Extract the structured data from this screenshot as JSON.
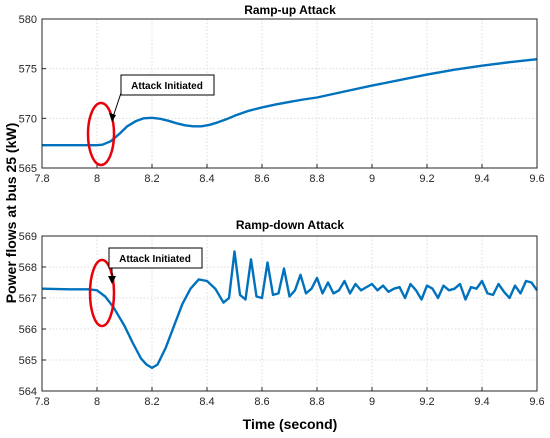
{
  "colors": {
    "series": "#0072BD",
    "ellipse": "#E8000B",
    "frame": "#262626",
    "grid": "#dcdcdc"
  },
  "shared": {
    "xlabel": "Time (second)",
    "ylabel": "Power flows at bus 25 (kW)"
  },
  "chart_data": [
    {
      "type": "line",
      "title": "Ramp-up Attack",
      "xlabel": "",
      "ylabel": "",
      "xlim": [
        7.8,
        9.6
      ],
      "ylim": [
        565,
        580
      ],
      "xticks": [
        "7.8",
        "8",
        "8.2",
        "8.4",
        "8.6",
        "8.8",
        "9",
        "9.2",
        "9.4",
        "9.6"
      ],
      "yticks": [
        "565",
        "570",
        "575",
        "580"
      ],
      "grid": true,
      "series": [
        {
          "x": [
            7.8,
            7.9,
            8.0,
            8.02,
            8.05,
            8.08,
            8.11,
            8.14,
            8.17,
            8.2,
            8.23,
            8.26,
            8.29,
            8.32,
            8.35,
            8.38,
            8.41,
            8.44,
            8.47,
            8.5,
            8.55,
            8.6,
            8.65,
            8.7,
            8.75,
            8.8,
            8.9,
            9.0,
            9.1,
            9.2,
            9.3,
            9.4,
            9.5,
            9.6
          ],
          "y": [
            567.3,
            567.3,
            567.3,
            567.35,
            567.7,
            568.4,
            569.2,
            569.7,
            570.0,
            570.05,
            569.95,
            569.75,
            569.5,
            569.3,
            569.2,
            569.2,
            569.35,
            569.6,
            569.9,
            570.25,
            570.75,
            571.1,
            571.4,
            571.65,
            571.9,
            572.1,
            572.7,
            573.3,
            573.85,
            574.4,
            574.9,
            575.3,
            575.65,
            575.95
          ]
        }
      ],
      "annotations": [
        {
          "text": "Attack Initiated"
        }
      ]
    },
    {
      "type": "line",
      "title": "Ramp-down Attack",
      "xlabel": "",
      "ylabel": "",
      "xlim": [
        7.8,
        9.6
      ],
      "ylim": [
        564,
        569
      ],
      "xticks": [
        "7.8",
        "8",
        "8.2",
        "8.4",
        "8.6",
        "8.8",
        "9",
        "9.2",
        "9.4",
        "9.6"
      ],
      "yticks": [
        "564",
        "565",
        "566",
        "567",
        "568",
        "569"
      ],
      "grid": true,
      "series": [
        {
          "x": [
            7.8,
            7.9,
            7.97,
            8.0,
            8.03,
            8.06,
            8.1,
            8.13,
            8.16,
            8.18,
            8.2,
            8.22,
            8.25,
            8.28,
            8.31,
            8.34,
            8.37,
            8.4,
            8.43,
            8.46,
            8.48,
            8.5,
            8.52,
            8.54,
            8.56,
            8.58,
            8.6,
            8.62,
            8.64,
            8.66,
            8.68,
            8.7,
            8.72,
            8.74,
            8.76,
            8.78,
            8.8,
            8.82,
            8.84,
            8.86,
            8.88,
            8.9,
            8.92,
            8.94,
            8.96,
            8.98,
            9.0,
            9.02,
            9.04,
            9.06,
            9.08,
            9.1,
            9.12,
            9.14,
            9.16,
            9.18,
            9.2,
            9.22,
            9.24,
            9.26,
            9.28,
            9.3,
            9.32,
            9.34,
            9.36,
            9.38,
            9.4,
            9.42,
            9.44,
            9.46,
            9.48,
            9.5,
            9.52,
            9.54,
            9.56,
            9.58,
            9.6
          ],
          "y": [
            567.3,
            567.28,
            567.28,
            567.25,
            567.05,
            566.7,
            566.1,
            565.55,
            565.05,
            564.85,
            564.75,
            564.85,
            565.4,
            566.1,
            566.8,
            567.3,
            567.6,
            567.55,
            567.3,
            566.85,
            567.0,
            568.5,
            567.1,
            566.95,
            568.25,
            567.05,
            567.0,
            568.15,
            567.1,
            567.15,
            567.95,
            567.05,
            567.25,
            567.75,
            567.15,
            567.3,
            567.65,
            567.15,
            567.5,
            567.15,
            567.25,
            567.55,
            567.15,
            567.45,
            567.25,
            567.35,
            567.45,
            567.25,
            567.4,
            567.2,
            567.3,
            567.35,
            567.0,
            567.45,
            567.25,
            566.95,
            567.4,
            567.3,
            567.0,
            567.4,
            567.25,
            567.3,
            567.45,
            566.95,
            567.35,
            567.3,
            567.55,
            567.15,
            567.1,
            567.45,
            567.2,
            567.0,
            567.4,
            567.15,
            567.55,
            567.5,
            567.25
          ]
        }
      ],
      "annotations": [
        {
          "text": "Attack Initiated"
        }
      ]
    }
  ]
}
